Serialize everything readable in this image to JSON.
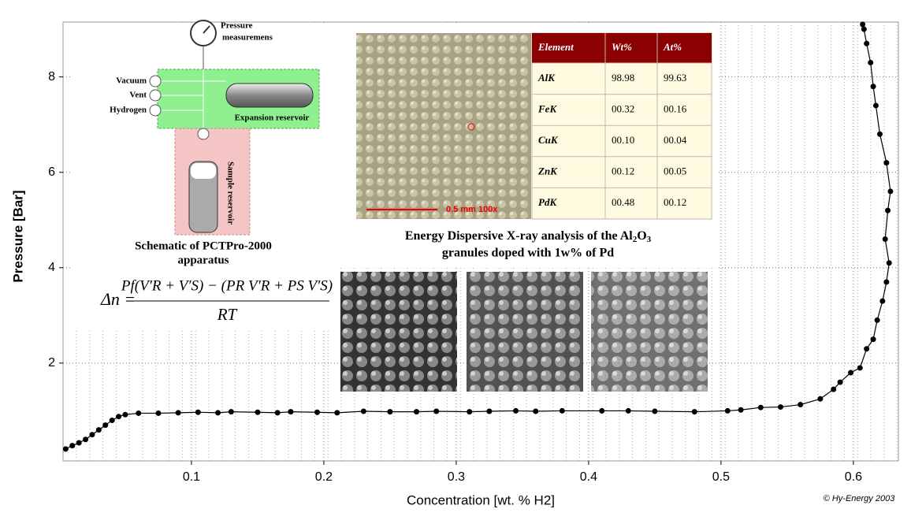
{
  "chart_data": {
    "type": "line",
    "x_label": "Concentration [wt. % H2]",
    "y_label": "Pressure [Bar]",
    "x": [
      0.005,
      0.01,
      0.015,
      0.02,
      0.025,
      0.03,
      0.035,
      0.04,
      0.045,
      0.05,
      0.06,
      0.075,
      0.09,
      0.105,
      0.12,
      0.13,
      0.15,
      0.165,
      0.175,
      0.195,
      0.21,
      0.23,
      0.25,
      0.27,
      0.285,
      0.31,
      0.325,
      0.345,
      0.36,
      0.38,
      0.41,
      0.43,
      0.45,
      0.48,
      0.505,
      0.515,
      0.53,
      0.545,
      0.56,
      0.575,
      0.585,
      0.59,
      0.598,
      0.605,
      0.61,
      0.615,
      0.618,
      0.622,
      0.625,
      0.627,
      0.624,
      0.626,
      0.628,
      0.625,
      0.62,
      0.617,
      0.615,
      0.613,
      0.61,
      0.608,
      0.607
    ],
    "values": [
      0.2,
      0.27,
      0.33,
      0.4,
      0.5,
      0.6,
      0.7,
      0.8,
      0.88,
      0.92,
      0.95,
      0.95,
      0.96,
      0.97,
      0.96,
      0.98,
      0.97,
      0.96,
      0.98,
      0.97,
      0.96,
      0.99,
      0.98,
      0.98,
      0.99,
      0.98,
      0.99,
      1.0,
      0.99,
      1.0,
      1.0,
      1.0,
      0.99,
      0.98,
      1.0,
      1.02,
      1.07,
      1.08,
      1.13,
      1.25,
      1.45,
      1.6,
      1.8,
      1.9,
      2.3,
      2.5,
      2.9,
      3.3,
      3.7,
      4.1,
      4.6,
      5.2,
      5.6,
      6.2,
      6.8,
      7.4,
      7.8,
      8.3,
      8.7,
      9.0,
      9.1
    ],
    "color": "#000000",
    "xlim": [
      0.003,
      0.634
    ],
    "ylim": [
      -0.05,
      9.15
    ],
    "xticks": [
      0.1,
      0.2,
      0.3,
      0.4,
      0.5,
      0.6
    ],
    "yticks": [
      2,
      4,
      6,
      8
    ],
    "grid": true
  },
  "schematic": {
    "labels": [
      "Pressure",
      "measuremens",
      "Vacuum",
      "Vent",
      "Hydrogen",
      "Expansion reservoir",
      "Sample reservoir"
    ],
    "caption": [
      "Schematic of PCTPro-2000",
      "apparatus"
    ]
  },
  "formula": {
    "lhs": "Δn =",
    "numerator": "Pf(V′R + V′S) − (PR V′R + PS V′S)",
    "denominator": "RT"
  },
  "micrograph": {
    "scale_label": "0.5 mm  100x"
  },
  "edx_table": {
    "header": [
      "Element",
      "Wt%",
      "At%"
    ],
    "rows": [
      [
        "AlK",
        "98.98",
        "99.63"
      ],
      [
        "FeK",
        "00.32",
        "00.16"
      ],
      [
        "CuK",
        "00.10",
        "00.04"
      ],
      [
        "ZnK",
        "00.12",
        "00.05"
      ],
      [
        "PdK",
        "00.48",
        "00.12"
      ]
    ]
  },
  "edx_caption": {
    "line1": [
      "Energy Dispersive X-ray analysis of the Al",
      "2",
      "O",
      "3"
    ],
    "line2": "granules doped with 1w% of Pd"
  },
  "copyright": "© Hy-Energy 2003"
}
